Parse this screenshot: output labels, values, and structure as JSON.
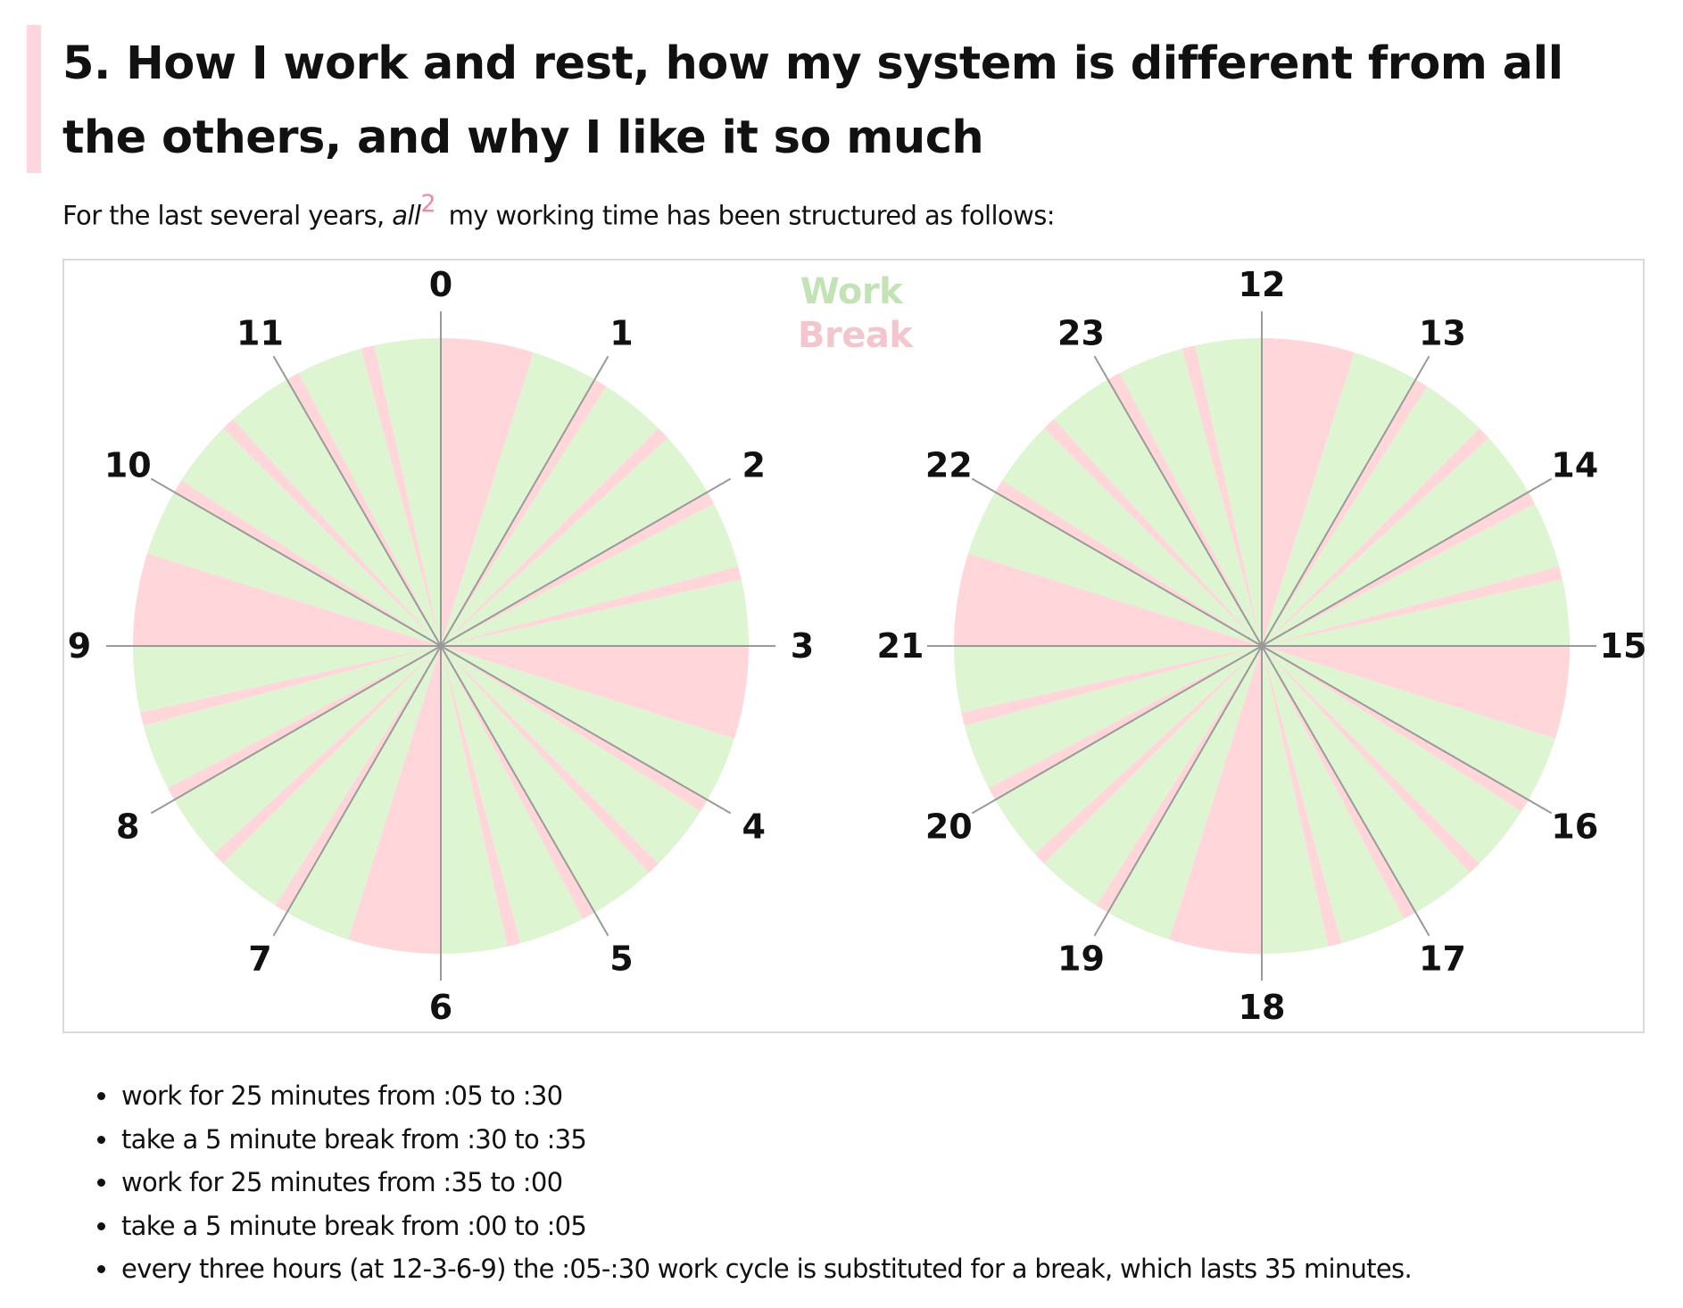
{
  "heading": "5. How I work and rest, how my system is different from all the others, and why I like it so much",
  "intro": {
    "before": "For the last several years,",
    "emphasis": "all",
    "footnote": "2",
    "after": "my working time has been structured as follows:"
  },
  "legend": {
    "work": "Work",
    "break": "Break"
  },
  "colors": {
    "work": "#def5d1",
    "break": "#ffd6da",
    "divider": "#9a9a9a",
    "legend_work": "#c3e3b5",
    "legend_break": "#f3c5cc",
    "heading_bar": "#ffd6de"
  },
  "clocks": [
    {
      "hours": [
        "0",
        "1",
        "2",
        "3",
        "4",
        "5",
        "6",
        "7",
        "8",
        "9",
        "10",
        "11"
      ]
    },
    {
      "hours": [
        "12",
        "13",
        "14",
        "15",
        "16",
        "17",
        "18",
        "19",
        "20",
        "21",
        "22",
        "23"
      ]
    }
  ],
  "schedule": {
    "half_hour_cycle": [
      {
        "type": "work",
        "from_min": 5,
        "to_min": 30
      },
      {
        "type": "break",
        "from_min": 30,
        "to_min": 35
      },
      {
        "type": "work",
        "from_min": 35,
        "to_min": 60
      },
      {
        "type": "break",
        "from_min": 0,
        "to_min": 5
      }
    ],
    "long_break_every_hours": 3,
    "long_break": {
      "from_min": 0,
      "to_min": 35
    }
  },
  "bullets": [
    "work for 25 minutes from :05 to :30",
    "take a 5 minute break from :30 to :35",
    "work for 25 minutes from :35 to :00",
    "take a 5 minute break from :00 to :05",
    "every three hours (at 12-3-6-9) the :05-:30 work cycle is substituted for a break, which lasts 35 minutes."
  ]
}
